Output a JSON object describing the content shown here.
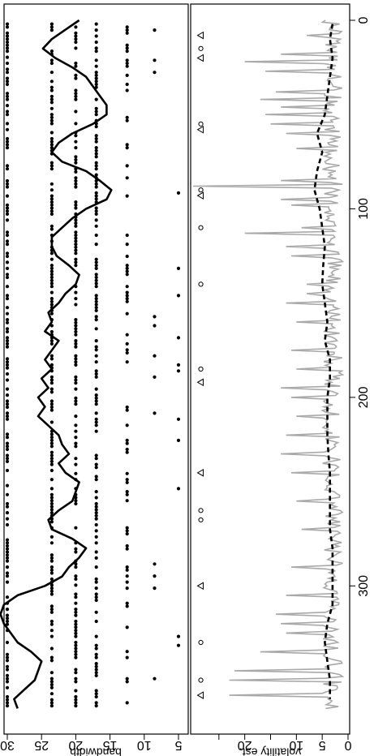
{
  "chart_data": [
    {
      "type": "scatter",
      "panel": "top",
      "ylabel": "bandwidth",
      "xlim": [
        0,
        370
      ],
      "ylim": [
        5,
        30
      ],
      "yticks": [
        5,
        10,
        15,
        20,
        25,
        30
      ],
      "ytick_labels": [
        "5",
        "10",
        "15",
        "20",
        "25",
        "30"
      ],
      "series": [
        {
          "kind": "points",
          "levels": [
            5,
            8.5,
            12.5,
            17,
            20,
            23.5,
            30
          ]
        },
        {
          "kind": "line",
          "x": [
            0,
            5,
            10,
            15,
            20,
            25,
            30,
            35,
            40,
            45,
            50,
            55,
            60,
            65,
            70,
            75,
            80,
            85,
            90,
            95,
            100,
            105,
            110,
            115,
            120,
            125,
            130,
            135,
            140,
            145,
            150,
            155,
            160,
            165,
            170,
            175,
            180,
            185,
            190,
            195,
            200,
            205,
            210,
            215,
            220,
            225,
            230,
            235,
            240,
            245,
            250,
            255,
            260,
            265,
            270,
            275,
            280,
            285,
            290,
            295,
            300,
            305,
            310,
            315,
            320,
            325,
            330,
            335,
            340,
            345,
            350,
            355,
            360,
            365
          ],
          "y": [
            19.5,
            21.5,
            23.5,
            24.8,
            23.0,
            20.5,
            18.5,
            17.5,
            16.5,
            15.5,
            15.5,
            17.5,
            20.5,
            22.5,
            23.5,
            22.0,
            18.5,
            16.5,
            14.8,
            15.5,
            18.5,
            20.5,
            22.0,
            23.5,
            23.5,
            22.8,
            21.0,
            19.5,
            20.0,
            21.5,
            22.5,
            24.0,
            23.5,
            24.5,
            22.5,
            23.5,
            24.5,
            23.5,
            25.0,
            24.0,
            25.5,
            24.5,
            25.5,
            24.0,
            22.5,
            22.0,
            21.0,
            22.5,
            21.5,
            19.5,
            20.0,
            20.5,
            22.5,
            24.0,
            23.5,
            20.5,
            18.5,
            19.5,
            21.0,
            22.0,
            24.5,
            28.5,
            30.5,
            31.0,
            30.5,
            29.5,
            28.5,
            26.5,
            25.0,
            25.5,
            26.0,
            27.5,
            29.0,
            28.5
          ]
        }
      ]
    },
    {
      "type": "line",
      "panel": "bottom",
      "ylabel": "volatility est.",
      "xlim": [
        0,
        370
      ],
      "ylim": [
        0,
        30
      ],
      "xticks": [
        0,
        100,
        200,
        300
      ],
      "xtick_labels": [
        "0",
        "100",
        "200",
        "300"
      ],
      "yticks": [
        0,
        5,
        10,
        15,
        20,
        25
      ],
      "ytick_labels": [
        "0",
        "5",
        "10",
        "",
        "20",
        ""
      ],
      "series": [
        {
          "kind": "raw",
          "color": "#a9a9a9",
          "spikes_x": [
            8,
            18,
            22,
            27,
            38,
            42,
            46,
            50,
            55,
            60,
            68,
            85,
            88,
            95,
            98,
            110,
            113,
            120,
            125,
            140,
            145,
            150,
            160,
            175,
            185,
            195,
            200,
            210,
            220,
            230,
            240,
            255,
            270,
            290,
            305,
            315,
            320,
            325,
            335,
            345,
            350,
            358
          ],
          "spikes_y": [
            8,
            13,
            20,
            16,
            14,
            17,
            13,
            16,
            15,
            12,
            10,
            13,
            32,
            13,
            11,
            9,
            20,
            12,
            11,
            8,
            8,
            12,
            10,
            11,
            10,
            13,
            11,
            10,
            12,
            13,
            11,
            10,
            9,
            11,
            12,
            14,
            13,
            12,
            17,
            22,
            23,
            23
          ]
        },
        {
          "kind": "smoothed",
          "style": "dashed",
          "color": "#000000",
          "x": [
            2,
            10,
            20,
            30,
            40,
            50,
            60,
            70,
            80,
            90,
            100,
            110,
            120,
            130,
            140,
            150,
            160,
            170,
            180,
            190,
            200,
            210,
            220,
            230,
            240,
            250,
            260,
            270,
            280,
            290,
            300,
            310,
            320,
            330,
            340,
            350,
            360
          ],
          "y": [
            3.0,
            3.5,
            3.0,
            3.5,
            4.0,
            4.5,
            6.0,
            5.0,
            6.0,
            6.5,
            5.5,
            5.0,
            4.5,
            4.8,
            5.0,
            4.5,
            4.0,
            4.5,
            3.5,
            3.5,
            4.0,
            4.0,
            4.0,
            3.8,
            3.5,
            3.5,
            3.5,
            3.5,
            3.0,
            3.0,
            3.0,
            3.0,
            4.0,
            4.5,
            4.0,
            3.5,
            3.5
          ]
        },
        {
          "kind": "markers",
          "triangles_x": [
            8,
            20,
            58,
            93,
            192,
            240,
            300,
            358
          ],
          "circles_x": [
            15,
            55,
            90,
            110,
            140,
            185,
            260,
            265,
            330,
            350
          ]
        }
      ]
    }
  ]
}
